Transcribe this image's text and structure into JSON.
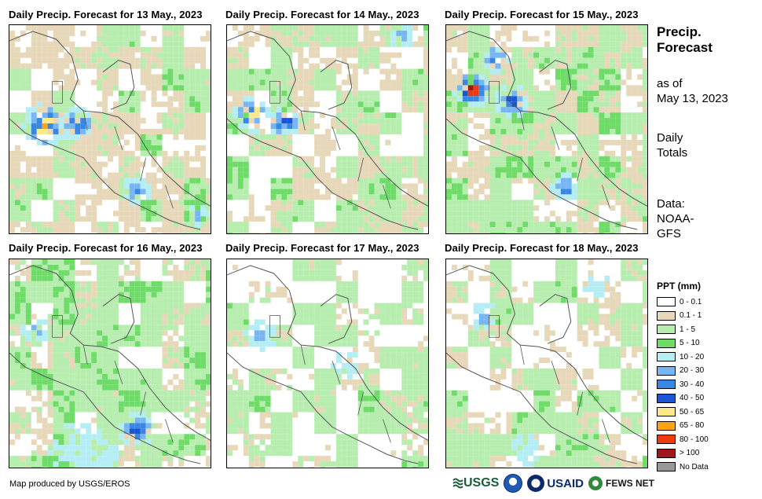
{
  "panels": [
    {
      "title": "Daily Precip. Forecast for 13 May., 2023"
    },
    {
      "title": "Daily Precip. Forecast for 14 May., 2023"
    },
    {
      "title": "Daily Precip. Forecast for 15 May., 2023"
    },
    {
      "title": "Daily Precip. Forecast for 16 May., 2023"
    },
    {
      "title": "Daily Precip. Forecast for 17 May., 2023"
    },
    {
      "title": "Daily Precip. Forecast for 18 May., 2023"
    }
  ],
  "side": {
    "title_line1": "Precip.",
    "title_line2": "Forecast",
    "asof_line1": "as of",
    "asof_line2": "May 13, 2023",
    "totals_line1": "Daily",
    "totals_line2": "Totals",
    "data_line1": "Data:",
    "data_line2": "NOAA-",
    "data_line3": "GFS"
  },
  "legend": {
    "title": "PPT (mm)",
    "items": [
      {
        "label": "0 - 0.1",
        "color": "#ffffff"
      },
      {
        "label": "0.1 - 1",
        "color": "#e6d8b9"
      },
      {
        "label": "1 - 5",
        "color": "#b7eeb0"
      },
      {
        "label": "5 - 10",
        "color": "#6fdc6a"
      },
      {
        "label": "10 - 20",
        "color": "#b4eef4"
      },
      {
        "label": "20 - 30",
        "color": "#78b6f3"
      },
      {
        "label": "30 - 40",
        "color": "#3a86e4"
      },
      {
        "label": "40 - 50",
        "color": "#1a55d6"
      },
      {
        "label": "50 - 65",
        "color": "#fde98a"
      },
      {
        "label": "65 - 80",
        "color": "#f9a21b"
      },
      {
        "label": "80 - 100",
        "color": "#ee3a0d"
      },
      {
        "label": "> 100",
        "color": "#a11616"
      },
      {
        "label": "No Data",
        "color": "#999999"
      }
    ]
  },
  "footer": {
    "credit": "Map produced by USGS/EROS",
    "logo_usgs": "USGS",
    "logo_usaid": "USAID",
    "logo_fews": "FEWS NET"
  }
}
